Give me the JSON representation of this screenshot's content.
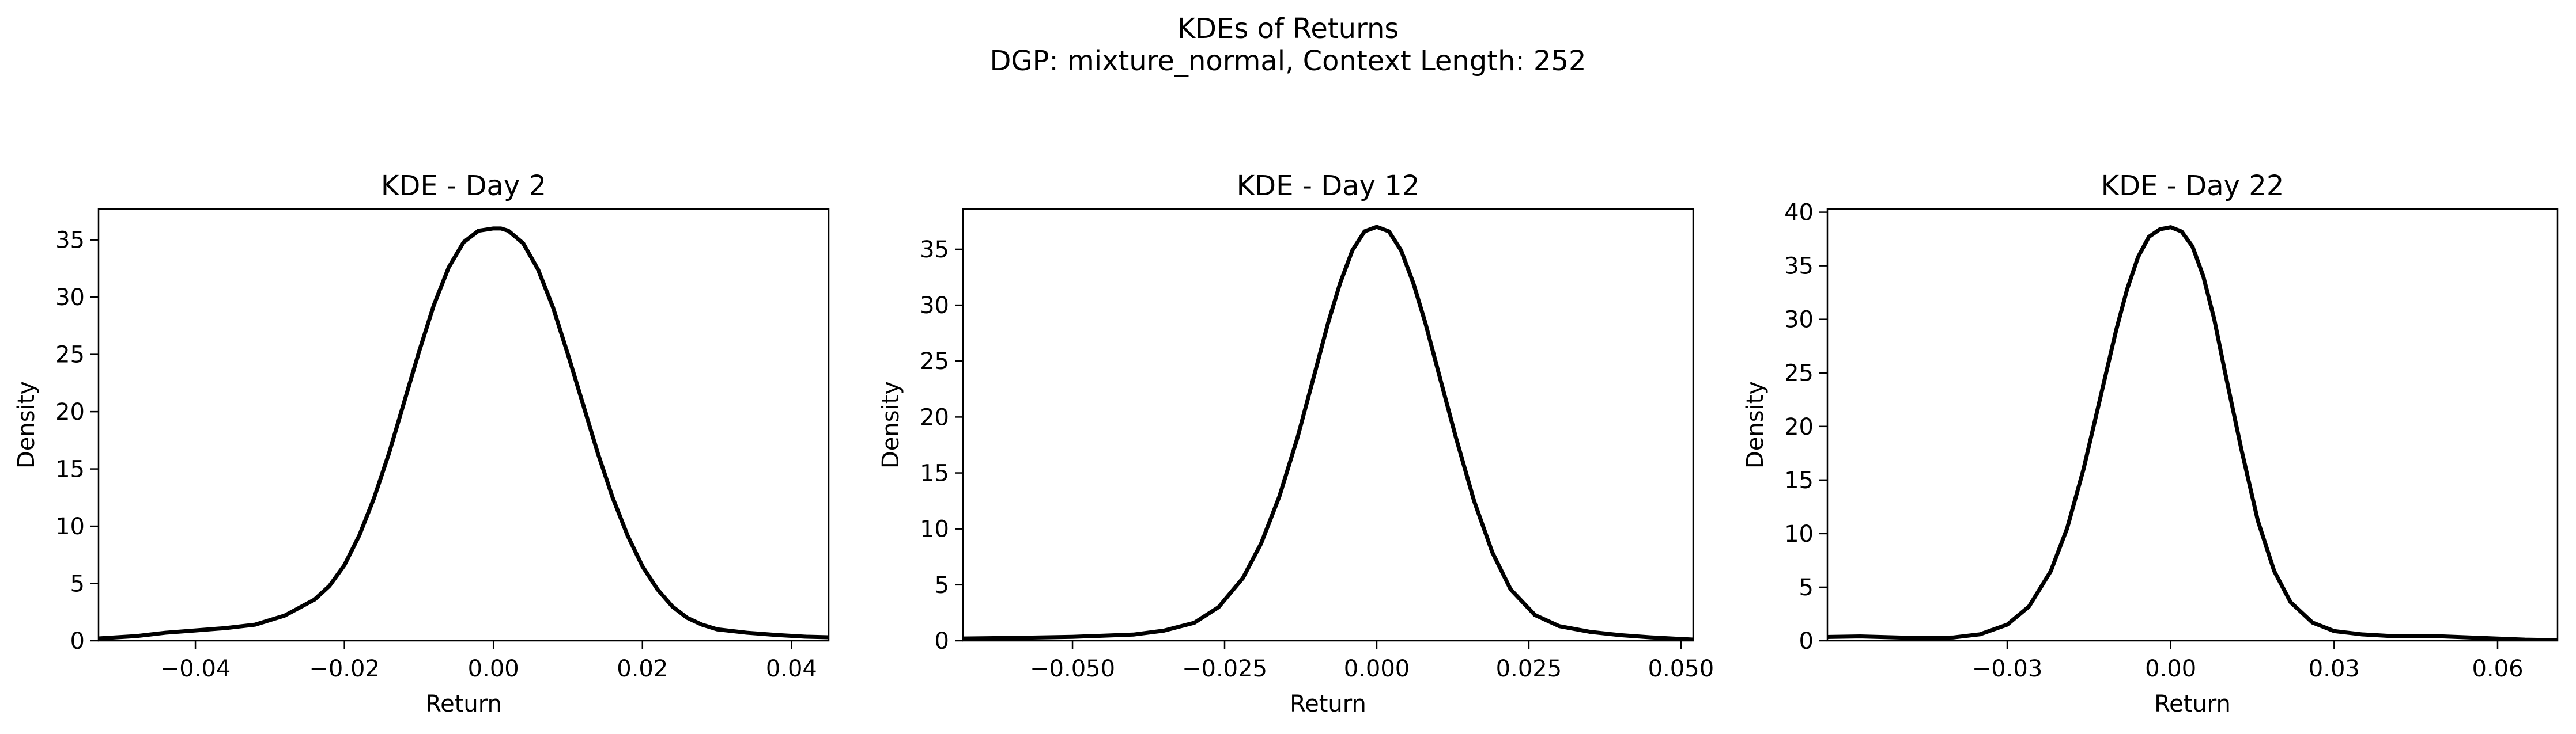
{
  "figure": {
    "title_line1": "KDEs of Returns",
    "title_line2": "DGP: mixture_normal, Context Length: 252"
  },
  "chart_data": [
    {
      "type": "line",
      "title": "KDE - Day 2",
      "xlabel": "Return",
      "ylabel": "Density",
      "xlim": [
        -0.053,
        0.045
      ],
      "ylim": [
        0,
        37.7
      ],
      "xticks": [
        -0.04,
        -0.02,
        0.0,
        0.02,
        0.04
      ],
      "xtick_labels": [
        "−0.04",
        "−0.02",
        "0.00",
        "0.02",
        "0.04"
      ],
      "yticks": [
        0,
        5,
        10,
        15,
        20,
        25,
        30,
        35
      ],
      "ytick_labels": [
        "0",
        "5",
        "10",
        "15",
        "20",
        "25",
        "30",
        "35"
      ],
      "series": [
        {
          "color": "#000000",
          "x": [
            -0.053,
            -0.048,
            -0.044,
            -0.04,
            -0.036,
            -0.032,
            -0.028,
            -0.024,
            -0.022,
            -0.02,
            -0.018,
            -0.016,
            -0.014,
            -0.012,
            -0.01,
            -0.008,
            -0.006,
            -0.004,
            -0.002,
            0.0,
            0.001,
            0.002,
            0.004,
            0.006,
            0.008,
            0.01,
            0.012,
            0.014,
            0.016,
            0.018,
            0.02,
            0.022,
            0.024,
            0.026,
            0.028,
            0.03,
            0.034,
            0.038,
            0.042,
            0.045
          ],
          "y": [
            0.2,
            0.4,
            0.7,
            0.9,
            1.1,
            1.4,
            2.2,
            3.6,
            4.8,
            6.6,
            9.2,
            12.5,
            16.4,
            20.8,
            25.2,
            29.3,
            32.6,
            34.8,
            35.8,
            36.0,
            36.0,
            35.8,
            34.7,
            32.4,
            29.1,
            25.0,
            20.7,
            16.4,
            12.5,
            9.2,
            6.5,
            4.5,
            3.0,
            2.0,
            1.4,
            1.0,
            0.7,
            0.5,
            0.35,
            0.3
          ]
        }
      ]
    },
    {
      "type": "line",
      "title": "KDE - Day 12",
      "xlabel": "Return",
      "ylabel": "Density",
      "xlim": [
        -0.068,
        0.052
      ],
      "ylim": [
        0,
        38.6
      ],
      "xticks": [
        -0.05,
        -0.025,
        0.0,
        0.025,
        0.05
      ],
      "xtick_labels": [
        "−0.050",
        "−0.025",
        "0.000",
        "0.025",
        "0.050"
      ],
      "yticks": [
        0,
        5,
        10,
        15,
        20,
        25,
        30,
        35
      ],
      "ytick_labels": [
        "0",
        "5",
        "10",
        "15",
        "20",
        "25",
        "30",
        "35"
      ],
      "series": [
        {
          "color": "#000000",
          "x": [
            -0.068,
            -0.06,
            -0.05,
            -0.04,
            -0.035,
            -0.03,
            -0.026,
            -0.022,
            -0.019,
            -0.016,
            -0.013,
            -0.01,
            -0.008,
            -0.006,
            -0.004,
            -0.002,
            0.0,
            0.002,
            0.004,
            0.006,
            0.008,
            0.01,
            0.013,
            0.016,
            0.019,
            0.022,
            0.026,
            0.03,
            0.035,
            0.04,
            0.045,
            0.052
          ],
          "y": [
            0.2,
            0.25,
            0.35,
            0.55,
            0.9,
            1.6,
            3.0,
            5.6,
            8.7,
            12.9,
            18.2,
            24.3,
            28.4,
            32.0,
            34.9,
            36.6,
            37.0,
            36.6,
            34.9,
            32.0,
            28.4,
            24.3,
            18.2,
            12.5,
            7.9,
            4.6,
            2.3,
            1.3,
            0.8,
            0.5,
            0.3,
            0.1
          ]
        }
      ]
    },
    {
      "type": "line",
      "title": "KDE - Day 22",
      "xlabel": "Return",
      "ylabel": "Density",
      "xlim": [
        -0.063,
        0.071
      ],
      "ylim": [
        0,
        40.3
      ],
      "xticks": [
        -0.03,
        0.0,
        0.03,
        0.06
      ],
      "xtick_labels": [
        "−0.03",
        "0.00",
        "0.03",
        "0.06"
      ],
      "yticks": [
        0,
        5,
        10,
        15,
        20,
        25,
        30,
        35,
        40
      ],
      "ytick_labels": [
        "0",
        "5",
        "10",
        "15",
        "20",
        "25",
        "30",
        "35",
        "40"
      ],
      "series": [
        {
          "color": "#000000",
          "x": [
            -0.063,
            -0.057,
            -0.05,
            -0.045,
            -0.04,
            -0.035,
            -0.03,
            -0.026,
            -0.022,
            -0.019,
            -0.016,
            -0.013,
            -0.01,
            -0.008,
            -0.006,
            -0.004,
            -0.002,
            0.0,
            0.002,
            0.004,
            0.006,
            0.008,
            0.01,
            0.013,
            0.016,
            0.019,
            0.022,
            0.026,
            0.03,
            0.035,
            0.04,
            0.045,
            0.05,
            0.055,
            0.06,
            0.065,
            0.071
          ],
          "y": [
            0.35,
            0.4,
            0.3,
            0.25,
            0.3,
            0.6,
            1.5,
            3.2,
            6.5,
            10.5,
            16.0,
            22.5,
            29.0,
            32.8,
            35.8,
            37.7,
            38.4,
            38.6,
            38.2,
            36.8,
            34.0,
            30.0,
            25.0,
            17.8,
            11.2,
            6.5,
            3.6,
            1.7,
            0.9,
            0.6,
            0.45,
            0.45,
            0.4,
            0.3,
            0.2,
            0.1,
            0.05
          ]
        }
      ]
    }
  ]
}
